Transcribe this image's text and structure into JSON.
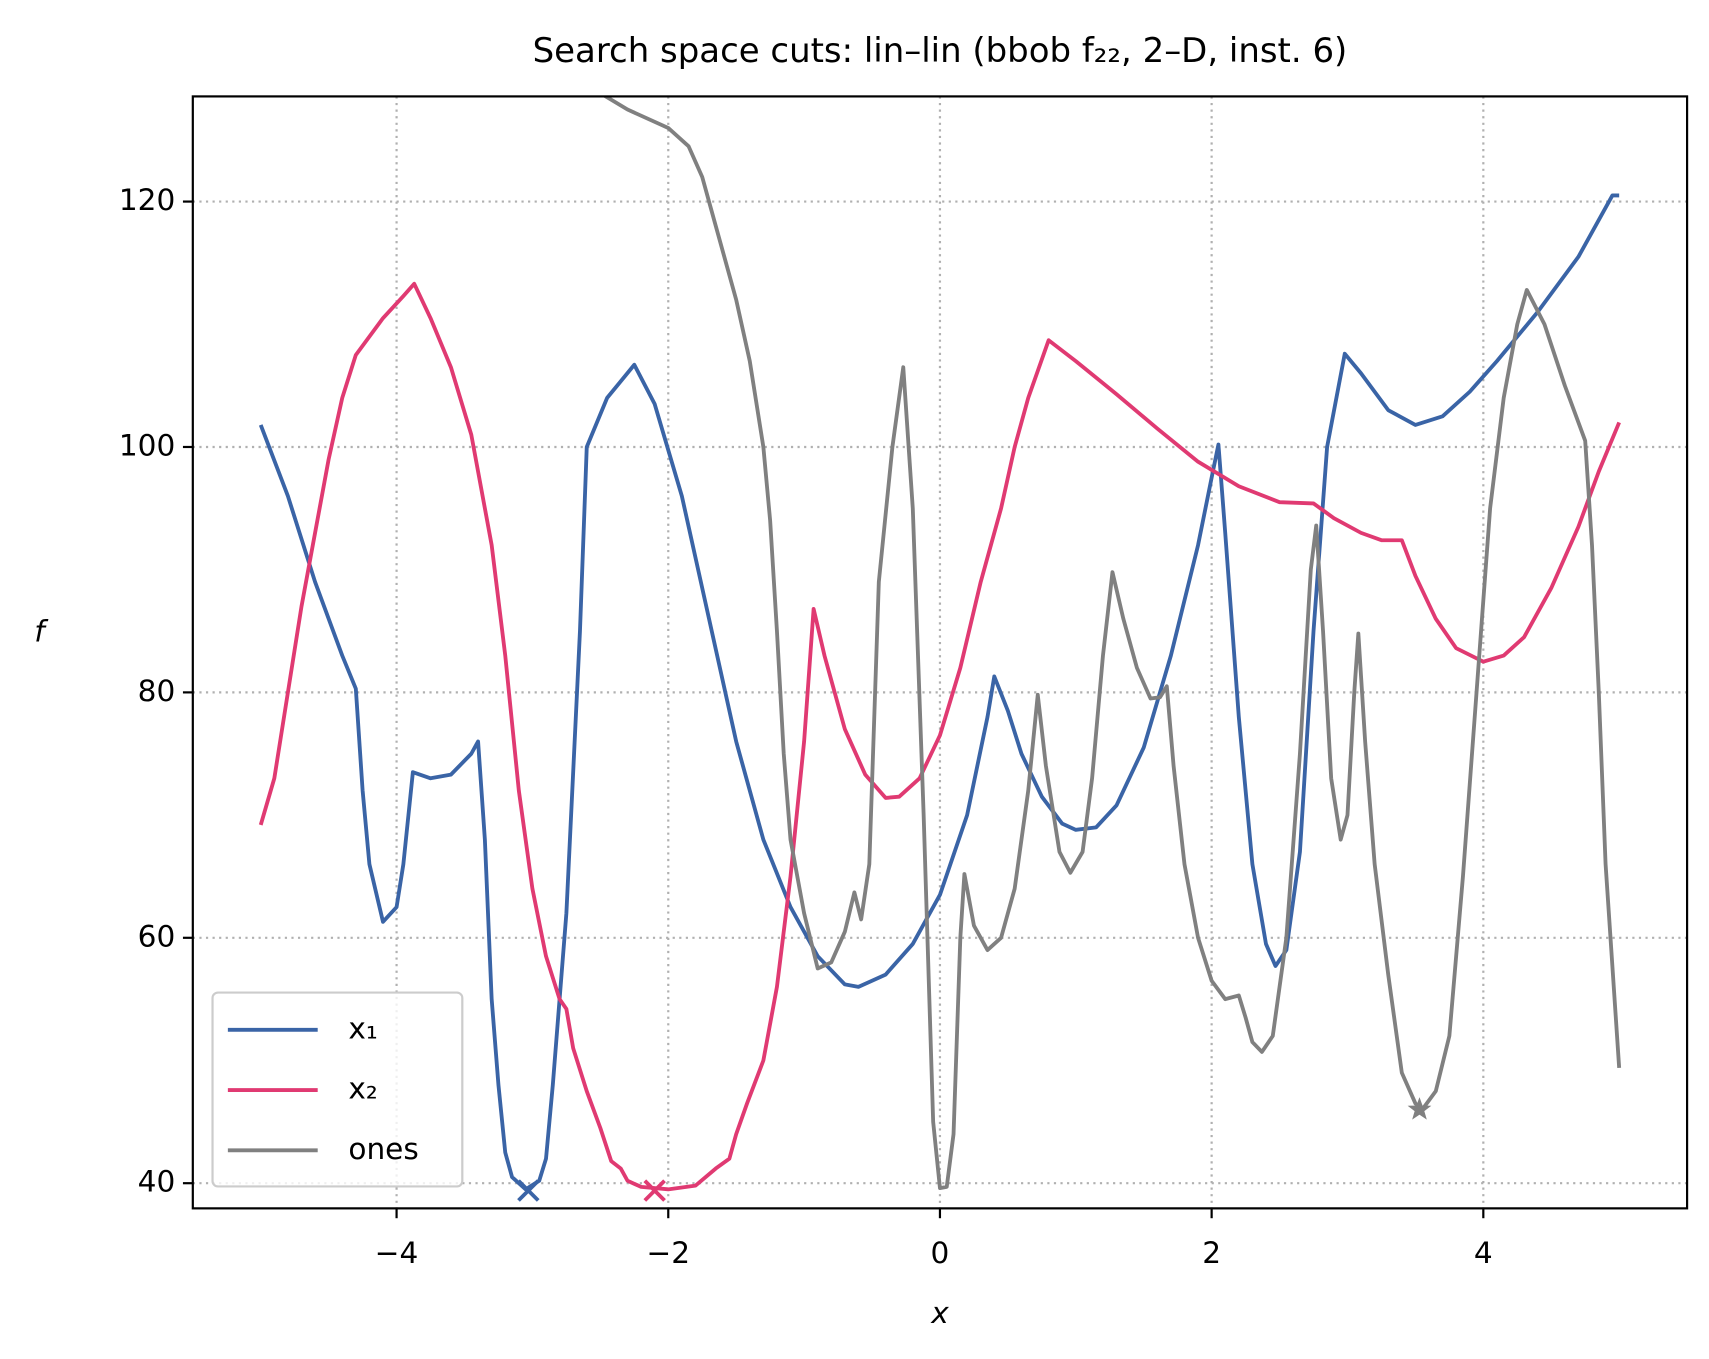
{
  "chart_data": {
    "type": "line",
    "title": "Search space cuts: lin–lin (bbob f₂₂, 2–D, inst. 6)",
    "xlabel": "x",
    "ylabel": "f",
    "xlim": [
      -5.5,
      5.5
    ],
    "ylim": [
      37.95,
      128.57
    ],
    "xticks": [
      {
        "value": -4,
        "label": "−4"
      },
      {
        "value": -2,
        "label": "−2"
      },
      0,
      2,
      4
    ],
    "yticks": [
      40,
      60,
      80,
      100,
      120
    ],
    "grid": true,
    "legend": "lower left",
    "series": [
      {
        "name": "x₁",
        "color": "#3a64a6",
        "x": [
          -5,
          -4.8,
          -4.6,
          -4.4,
          -4.3,
          -4.25,
          -4.2,
          -4.1,
          -4.0,
          -3.95,
          -3.88,
          -3.75,
          -3.6,
          -3.45,
          -3.4,
          -3.35,
          -3.3,
          -3.25,
          -3.2,
          -3.15,
          -3.05,
          -2.95,
          -2.9,
          -2.85,
          -2.75,
          -2.65,
          -2.6,
          -2.45,
          -2.25,
          -2.1,
          -1.9,
          -1.7,
          -1.5,
          -1.3,
          -1.1,
          -0.9,
          -0.7,
          -0.6,
          -0.4,
          -0.2,
          0,
          0.2,
          0.35,
          0.4,
          0.5,
          0.6,
          0.75,
          0.9,
          1.0,
          1.15,
          1.3,
          1.5,
          1.7,
          1.9,
          2.0,
          2.05,
          2.1,
          2.2,
          2.3,
          2.4,
          2.47,
          2.55,
          2.65,
          2.75,
          2.85,
          2.98,
          3.1,
          3.3,
          3.5,
          3.7,
          3.9,
          4.1,
          4.4,
          4.7,
          4.95,
          5.0
        ],
        "values": [
          101.8,
          96,
          89,
          83,
          80.3,
          72,
          66,
          61.3,
          62.5,
          66,
          73.5,
          73,
          73.3,
          75,
          76,
          68,
          55,
          48,
          42.5,
          40.5,
          39.5,
          40.2,
          42,
          48,
          62,
          85,
          100,
          104,
          106.7,
          103.5,
          96,
          86,
          76,
          68,
          62.5,
          58.5,
          56.2,
          56,
          57,
          59.5,
          63.5,
          70,
          78,
          81.3,
          78.5,
          75,
          71.5,
          69.3,
          68.8,
          69,
          70.8,
          75.5,
          83,
          92,
          97.5,
          100.2,
          93,
          78,
          66,
          59.5,
          57.7,
          59,
          67,
          85,
          100,
          107.6,
          106,
          103,
          101.8,
          102.5,
          104.5,
          107,
          111,
          115.5,
          120.5,
          120.5
        ],
        "marker": {
          "x": -3.03,
          "y": 39.4,
          "symbol": "x"
        }
      },
      {
        "name": "x₂",
        "color": "#e03a72",
        "x": [
          -5,
          -4.9,
          -4.8,
          -4.7,
          -4.6,
          -4.5,
          -4.4,
          -4.3,
          -4.1,
          -3.95,
          -3.87,
          -3.75,
          -3.6,
          -3.45,
          -3.3,
          -3.2,
          -3.1,
          -3.0,
          -2.9,
          -2.8,
          -2.75,
          -2.7,
          -2.6,
          -2.5,
          -2.42,
          -2.35,
          -2.3,
          -2.2,
          -2.0,
          -1.8,
          -1.65,
          -1.55,
          -1.5,
          -1.42,
          -1.3,
          -1.2,
          -1.1,
          -1.0,
          -0.93,
          -0.85,
          -0.7,
          -0.55,
          -0.4,
          -0.3,
          -0.15,
          0,
          0.15,
          0.3,
          0.45,
          0.55,
          0.65,
          0.8,
          1.0,
          1.3,
          1.6,
          1.9,
          2.2,
          2.5,
          2.75,
          2.9,
          3.1,
          3.25,
          3.4,
          3.5,
          3.65,
          3.8,
          4.0,
          4.15,
          4.3,
          4.5,
          4.7,
          4.85,
          5.0
        ],
        "values": [
          69.2,
          73,
          80,
          87,
          93,
          99,
          104,
          107.5,
          110.5,
          112.3,
          113.3,
          110.5,
          106.5,
          101,
          92,
          83,
          72,
          64,
          58.5,
          55,
          54.2,
          51,
          47.5,
          44.5,
          41.8,
          41.2,
          40.2,
          39.7,
          39.5,
          39.8,
          41.2,
          42,
          44,
          46.5,
          50,
          56,
          65,
          76,
          86.8,
          83,
          77,
          73.3,
          71.4,
          71.5,
          73,
          76.5,
          82,
          89,
          95,
          100,
          104,
          108.7,
          107,
          104.3,
          101.5,
          98.8,
          96.8,
          95.5,
          95.4,
          94.2,
          93,
          92.4,
          92.4,
          89.5,
          86,
          83.6,
          82.5,
          83,
          84.5,
          88.5,
          93.5,
          98,
          102
        ],
        "marker": {
          "x": -2.1,
          "y": 39.4,
          "symbol": "x"
        }
      },
      {
        "name": "ones",
        "color": "#808080",
        "x": [
          -2.6,
          -2.3,
          -2.0,
          -1.85,
          -1.75,
          -1.65,
          -1.5,
          -1.4,
          -1.3,
          -1.25,
          -1.2,
          -1.15,
          -1.1,
          -1.0,
          -0.9,
          -0.8,
          -0.7,
          -0.63,
          -0.58,
          -0.52,
          -0.45,
          -0.35,
          -0.27,
          -0.2,
          -0.12,
          -0.05,
          0,
          0.05,
          0.1,
          0.15,
          0.18,
          0.25,
          0.35,
          0.45,
          0.55,
          0.65,
          0.72,
          0.78,
          0.88,
          0.96,
          1.05,
          1.12,
          1.2,
          1.27,
          1.35,
          1.45,
          1.55,
          1.62,
          1.67,
          1.72,
          1.8,
          1.9,
          2.0,
          2.1,
          2.2,
          2.25,
          2.3,
          2.37,
          2.45,
          2.55,
          2.65,
          2.73,
          2.77,
          2.82,
          2.88,
          2.95,
          3.0,
          3.05,
          3.08,
          3.13,
          3.2,
          3.3,
          3.4,
          3.5,
          3.55,
          3.65,
          3.75,
          3.85,
          3.95,
          4.05,
          4.15,
          4.25,
          4.32,
          4.45,
          4.6,
          4.75,
          4.8,
          4.85,
          4.9,
          5.0
        ],
        "values": [
          129.5,
          127.5,
          126,
          124.5,
          122,
          118,
          112,
          107,
          100,
          94,
          85,
          75,
          68,
          62,
          57.5,
          58,
          60.5,
          63.7,
          61.5,
          66,
          89,
          100,
          106.5,
          95,
          70,
          45,
          39.6,
          39.7,
          44,
          60,
          65.2,
          61,
          59,
          60,
          64,
          72,
          79.8,
          74,
          67,
          65.3,
          67,
          73,
          83,
          89.8,
          86,
          82,
          79.5,
          79.6,
          80.5,
          74,
          66,
          60,
          56.5,
          55,
          55.3,
          53.5,
          51.5,
          50.7,
          52,
          60,
          75,
          90,
          93.6,
          85,
          73,
          68,
          70,
          80,
          84.8,
          76,
          66,
          57,
          49,
          46.5,
          46,
          47.5,
          52,
          65,
          80,
          95,
          104,
          110,
          112.8,
          110,
          105,
          100.5,
          92,
          80,
          66,
          49.4
        ],
        "marker": {
          "x": 3.53,
          "y": 46,
          "symbol": "*"
        }
      }
    ]
  }
}
